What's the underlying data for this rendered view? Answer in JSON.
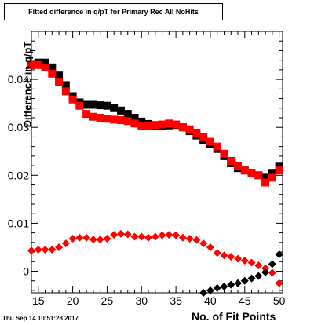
{
  "header": {
    "title": "Fitted difference in q/pT for Primary Rec All NoHits"
  },
  "footer": {
    "timestamp": "Thu Sep 14 10:51:28 2017"
  },
  "chart_data": {
    "type": "scatter",
    "title": "Fitted difference in q/pT for Primary Rec All NoHits",
    "xlabel": "No. of Fit Points",
    "ylabel": "Difference in q/pT",
    "xlim": [
      14,
      50.5
    ],
    "ylim": [
      -0.0045,
      0.05
    ],
    "xticks": [
      15,
      20,
      25,
      30,
      35,
      40,
      45,
      50
    ],
    "xtick_labels": [
      "15",
      "20",
      "25",
      "30",
      "35",
      "40",
      "45",
      "50"
    ],
    "yticks": [
      0,
      0.01,
      0.02,
      0.03,
      0.04
    ],
    "ytick_labels": [
      "0",
      "0.01",
      "0.02",
      "0.03",
      "0.04"
    ],
    "grid": false,
    "series": [
      {
        "color": "#000000",
        "marker": "square",
        "x": [
          14,
          15,
          16,
          17,
          18,
          19,
          20,
          21,
          22,
          23,
          24,
          25,
          26,
          27,
          28,
          29,
          30,
          31,
          32,
          33,
          34,
          35,
          36,
          37,
          38,
          39,
          40,
          41,
          42,
          43,
          44,
          45,
          46,
          47,
          48,
          49,
          50
        ],
        "y": [
          0.043,
          0.0435,
          0.0435,
          0.0425,
          0.0408,
          0.0388,
          0.0365,
          0.0352,
          0.0347,
          0.0347,
          0.0346,
          0.0345,
          0.034,
          0.0335,
          0.0328,
          0.032,
          0.0312,
          0.0307,
          0.0303,
          0.0302,
          0.0304,
          0.0305,
          0.03,
          0.0292,
          0.0283,
          0.0274,
          0.0265,
          0.0255,
          0.024,
          0.0225,
          0.0215,
          0.021,
          0.0205,
          0.02,
          0.0195,
          0.0205,
          0.0218
        ]
      },
      {
        "color": "#ff0000",
        "marker": "square",
        "x": [
          14,
          15,
          16,
          17,
          18,
          19,
          20,
          21,
          22,
          23,
          24,
          25,
          26,
          27,
          28,
          29,
          30,
          31,
          32,
          33,
          34,
          35,
          36,
          37,
          38,
          39,
          40,
          41,
          42,
          43,
          44,
          45,
          46,
          47,
          48,
          49,
          50
        ],
        "y": [
          0.043,
          0.043,
          0.0425,
          0.0412,
          0.0395,
          0.0375,
          0.0358,
          0.0345,
          0.0328,
          0.0322,
          0.032,
          0.0318,
          0.0316,
          0.0315,
          0.0313,
          0.0308,
          0.0303,
          0.0302,
          0.0305,
          0.0306,
          0.0308,
          0.0306,
          0.03,
          0.0296,
          0.0289,
          0.028,
          0.027,
          0.026,
          0.0245,
          0.023,
          0.022,
          0.021,
          0.0205,
          0.02,
          0.0185,
          0.0195,
          0.021
        ]
      },
      {
        "color": "#ff0000",
        "marker": "diamond",
        "x": [
          14,
          15,
          16,
          17,
          18,
          19,
          20,
          21,
          22,
          23,
          24,
          25,
          26,
          27,
          28,
          29,
          30,
          31,
          32,
          33,
          34,
          35,
          36,
          37,
          38,
          39,
          40,
          41,
          42,
          43,
          44,
          45,
          46,
          47,
          48,
          49,
          50
        ],
        "y": [
          0.0043,
          0.0045,
          0.0045,
          0.0045,
          0.005,
          0.0058,
          0.0068,
          0.007,
          0.007,
          0.0066,
          0.0066,
          0.0068,
          0.0076,
          0.0078,
          0.0077,
          0.0072,
          0.0072,
          0.007,
          0.0072,
          0.0075,
          0.0076,
          0.0075,
          0.007,
          0.0068,
          0.0065,
          0.0058,
          0.005,
          0.0038,
          0.0033,
          0.003,
          0.0026,
          0.0022,
          0.0018,
          0.0012,
          0.0006,
          -0.0003,
          -0.0025
        ]
      },
      {
        "color": "#000000",
        "marker": "diamond",
        "x": [
          39,
          40,
          41,
          42,
          43,
          44,
          45,
          46,
          47,
          48,
          49,
          50
        ],
        "y": [
          -0.0045,
          -0.004,
          -0.0035,
          -0.0032,
          -0.0028,
          -0.0025,
          -0.002,
          -0.0015,
          -0.001,
          -0.0002,
          0.0015,
          0.0035
        ]
      }
    ]
  }
}
